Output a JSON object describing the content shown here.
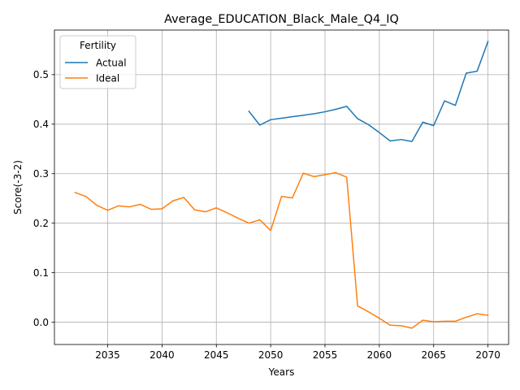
{
  "chart_data": {
    "type": "line",
    "title": "Average_EDUCATION_Black_Male_Q4_IQ",
    "xlabel": "Years",
    "ylabel": "Score(-3-2)",
    "xlim": [
      2030.1,
      2071.9
    ],
    "ylim": [
      -0.045,
      0.59
    ],
    "xticks": [
      2035,
      2040,
      2045,
      2050,
      2055,
      2060,
      2065,
      2070
    ],
    "yticks": [
      0.0,
      0.1,
      0.2,
      0.3,
      0.4,
      0.5
    ],
    "xtick_labels": [
      "2035",
      "2040",
      "2045",
      "2050",
      "2055",
      "2060",
      "2065",
      "2070"
    ],
    "ytick_labels": [
      "0.0",
      "0.1",
      "0.2",
      "0.3",
      "0.4",
      "0.5"
    ],
    "grid": true,
    "legend": {
      "title": "Fertility",
      "placement": "top-left"
    },
    "series": [
      {
        "name": "Actual",
        "color": "#1f77b4",
        "x": [
          2048,
          2049,
          2050,
          2051,
          2052,
          2053,
          2054,
          2055,
          2056,
          2057,
          2058,
          2059,
          2060,
          2061,
          2062,
          2063,
          2064,
          2065,
          2066,
          2067,
          2068,
          2069,
          2070
        ],
        "y": [
          0.426,
          0.398,
          0.409,
          0.412,
          0.415,
          0.418,
          0.421,
          0.425,
          0.43,
          0.436,
          0.411,
          0.399,
          0.383,
          0.366,
          0.369,
          0.365,
          0.404,
          0.397,
          0.447,
          0.438,
          0.503,
          0.507,
          0.567
        ]
      },
      {
        "name": "Ideal",
        "color": "#ff7f0e",
        "x": [
          2032,
          2033,
          2034,
          2035,
          2036,
          2037,
          2038,
          2039,
          2040,
          2041,
          2042,
          2043,
          2044,
          2045,
          2046,
          2047,
          2048,
          2049,
          2050,
          2051,
          2052,
          2053,
          2054,
          2055,
          2056,
          2057,
          2058,
          2059,
          2060,
          2061,
          2062,
          2063,
          2064,
          2065,
          2066,
          2067,
          2068,
          2069,
          2070
        ],
        "y": [
          0.262,
          0.254,
          0.236,
          0.226,
          0.235,
          0.233,
          0.238,
          0.228,
          0.229,
          0.245,
          0.252,
          0.227,
          0.223,
          0.231,
          0.221,
          0.21,
          0.2,
          0.207,
          0.185,
          0.254,
          0.251,
          0.301,
          0.294,
          0.298,
          0.302,
          0.293,
          0.033,
          0.021,
          0.008,
          -0.006,
          -0.007,
          -0.012,
          0.004,
          0.001,
          0.002,
          0.002,
          0.01,
          0.017,
          0.014
        ]
      }
    ]
  }
}
